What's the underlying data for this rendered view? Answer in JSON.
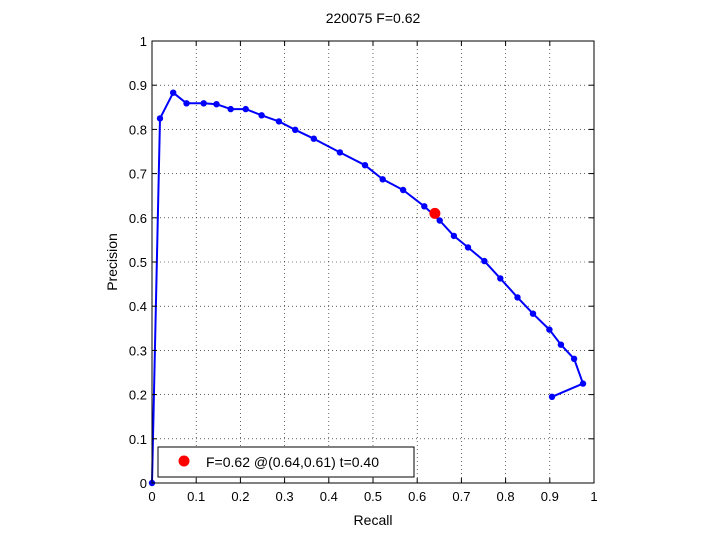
{
  "chart_data": {
    "type": "line",
    "title": "220075 F=0.62",
    "xlabel": "Recall",
    "ylabel": "Precision",
    "xlim": [
      0,
      1
    ],
    "ylim": [
      0,
      1
    ],
    "grid": true,
    "xticks": [
      0,
      0.1,
      0.2,
      0.3,
      0.4,
      0.5,
      0.6,
      0.7,
      0.8,
      0.9,
      1
    ],
    "yticks": [
      0,
      0.1,
      0.2,
      0.3,
      0.4,
      0.5,
      0.6,
      0.7,
      0.8,
      0.9,
      1
    ],
    "xtick_labels": [
      "0",
      "0.1",
      "0.2",
      "0.3",
      "0.4",
      "0.5",
      "0.6",
      "0.7",
      "0.8",
      "0.9",
      "1"
    ],
    "ytick_labels": [
      "0",
      "0.1",
      "0.2",
      "0.3",
      "0.4",
      "0.5",
      "0.6",
      "0.7",
      "0.8",
      "0.9",
      "1"
    ],
    "series": [
      {
        "color": "#0000ff",
        "points": [
          [
            0.0,
            0.0
          ],
          [
            0.018,
            0.825
          ],
          [
            0.048,
            0.883
          ],
          [
            0.078,
            0.859
          ],
          [
            0.117,
            0.859
          ],
          [
            0.146,
            0.857
          ],
          [
            0.178,
            0.846
          ],
          [
            0.212,
            0.846
          ],
          [
            0.248,
            0.832
          ],
          [
            0.287,
            0.818
          ],
          [
            0.324,
            0.799
          ],
          [
            0.366,
            0.779
          ],
          [
            0.425,
            0.748
          ],
          [
            0.482,
            0.719
          ],
          [
            0.522,
            0.687
          ],
          [
            0.568,
            0.663
          ],
          [
            0.616,
            0.626
          ],
          [
            0.651,
            0.594
          ],
          [
            0.683,
            0.559
          ],
          [
            0.715,
            0.533
          ],
          [
            0.752,
            0.502
          ],
          [
            0.788,
            0.463
          ],
          [
            0.827,
            0.42
          ],
          [
            0.862,
            0.383
          ],
          [
            0.899,
            0.347
          ],
          [
            0.925,
            0.313
          ],
          [
            0.955,
            0.281
          ],
          [
            0.975,
            0.225
          ],
          [
            0.905,
            0.195
          ]
        ]
      }
    ],
    "highlight": {
      "x": 0.64,
      "y": 0.61,
      "color": "#ff0000"
    },
    "legend": {
      "text": "F=0.62 @(0.64,0.61) t=0.40",
      "placement": "bottom-left"
    }
  }
}
